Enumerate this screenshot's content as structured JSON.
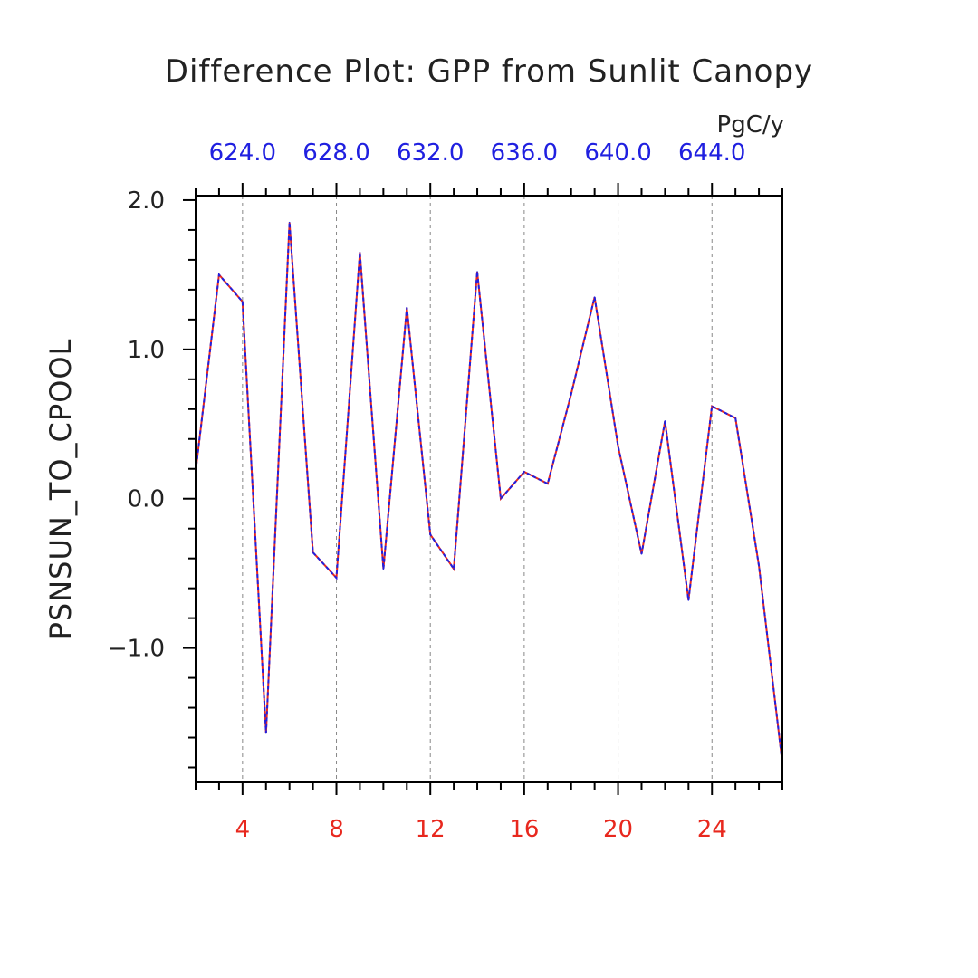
{
  "chart_data": {
    "type": "line",
    "title": "Difference Plot: GPP from Sunlit Canopy",
    "ylabel": "PSNSUN_TO_CPOOL",
    "top_axis_unit": "PgC/y",
    "xlim": [
      2,
      27
    ],
    "ylim": [
      -1.9,
      2.03
    ],
    "x_ticks": [
      "4",
      "8",
      "12",
      "16",
      "20",
      "24"
    ],
    "x_tick_values": [
      4,
      8,
      12,
      16,
      20,
      24
    ],
    "y_ticks": [
      "2.0",
      "1.0",
      "0.0",
      "−1.0"
    ],
    "y_tick_values": [
      2.0,
      1.0,
      0.0,
      -1.0
    ],
    "top_ticks": [
      "624.0",
      "628.0",
      "632.0",
      "636.0",
      "640.0",
      "644.0"
    ],
    "grid": "vertical dashed at x ticks",
    "colors": {
      "bottom_axis": "#e8281e",
      "top_axis": "#2020e0",
      "line_a": "#e8281e",
      "line_b": "#2020e0",
      "grid": "#888888",
      "axis": "#000000"
    },
    "series": [
      {
        "x": [
          2,
          3,
          4,
          5,
          6,
          7,
          8,
          9,
          10,
          11,
          12,
          13,
          14,
          15,
          16,
          17,
          18,
          19,
          20,
          21,
          22,
          23,
          24,
          25,
          26,
          27
        ],
        "values": [
          0.18,
          1.5,
          1.32,
          -1.57,
          1.85,
          -0.36,
          -0.53,
          1.65,
          -0.47,
          1.28,
          -0.24,
          -0.47,
          1.52,
          0.0,
          0.18,
          0.1,
          0.7,
          1.35,
          0.35,
          -0.37,
          0.52,
          -0.68,
          0.62,
          0.54,
          -0.45,
          -1.77
        ]
      }
    ]
  }
}
